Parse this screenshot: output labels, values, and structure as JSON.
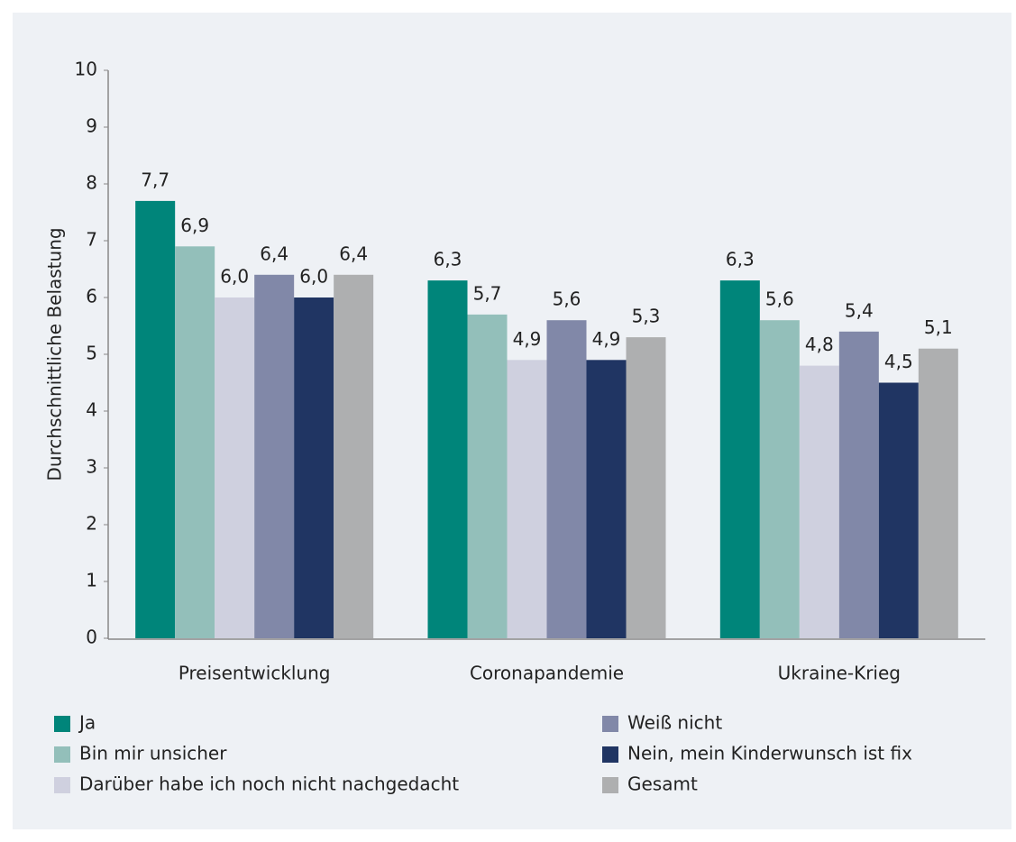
{
  "chart_data": {
    "type": "bar",
    "y_label": "Durchschnittliche Belastung",
    "categories": [
      "Preisentwicklung",
      "Coronapandemie",
      "Ukraine-Krieg"
    ],
    "series": [
      {
        "name": "Ja",
        "color": "#00857a",
        "values": [
          7.7,
          6.3,
          6.3
        ],
        "value_labels": [
          "7,7",
          "6,3",
          "6,3"
        ]
      },
      {
        "name": "Bin mir unsicher",
        "color": "#93bfba",
        "values": [
          6.9,
          5.7,
          5.6
        ],
        "value_labels": [
          "6,9",
          "5,7",
          "5,6"
        ]
      },
      {
        "name": "Darüber habe ich noch nicht nachgedacht",
        "color": "#cfd0df",
        "values": [
          6.0,
          4.9,
          4.8
        ],
        "value_labels": [
          "6,0",
          "4,9",
          "4,8"
        ]
      },
      {
        "name": "Weiß nicht",
        "color": "#8188a8",
        "values": [
          6.4,
          5.6,
          5.4
        ],
        "value_labels": [
          "6,4",
          "5,6",
          "5,4"
        ]
      },
      {
        "name": "Nein, mein Kinderwunsch ist fix",
        "color": "#203563",
        "values": [
          6.0,
          4.9,
          4.5
        ],
        "value_labels": [
          "6,0",
          "4,9",
          "4,5"
        ]
      },
      {
        "name": "Gesamt",
        "color": "#aeafb0",
        "values": [
          6.4,
          5.3,
          5.1
        ],
        "value_labels": [
          "6,4",
          "5,3",
          "5,1"
        ]
      }
    ],
    "ylim": [
      0,
      10
    ],
    "yticks": [
      0,
      1,
      2,
      3,
      4,
      5,
      6,
      7,
      8,
      9,
      10
    ]
  }
}
